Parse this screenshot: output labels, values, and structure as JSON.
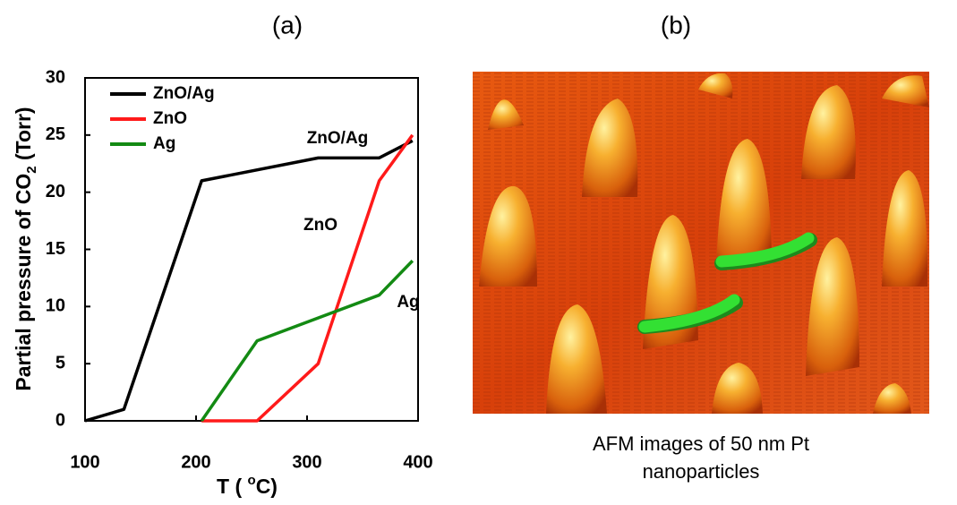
{
  "chart_data": {
    "type": "line",
    "panel_label": "(a)",
    "x_label": {
      "text": "T ( ",
      "superscript": "o",
      "suffix": "C)"
    },
    "y_label": {
      "text": "Partial pressure of CO",
      "subscript": "2",
      "suffix": " (Torr)"
    },
    "xlim": [
      100,
      400
    ],
    "xticks": [
      100,
      200,
      300,
      400
    ],
    "ylim": [
      0,
      30
    ],
    "yticks": [
      0,
      5,
      10,
      15,
      20,
      25,
      30
    ],
    "legend": "upper left",
    "series": [
      {
        "name": "ZnO/Ag",
        "color": "#000000",
        "x": [
          100,
          135,
          205,
          310,
          365,
          395
        ],
        "values": [
          0,
          1,
          21,
          23,
          23,
          24.5
        ]
      },
      {
        "name": "ZnO",
        "color": "#ff1a1a",
        "x": [
          205,
          255,
          310,
          365,
          395
        ],
        "values": [
          0,
          0,
          5,
          21,
          25
        ]
      },
      {
        "name": "Ag",
        "color": "#138a13",
        "x": [
          205,
          255,
          365,
          395
        ],
        "values": [
          0,
          7,
          11,
          14
        ]
      }
    ],
    "annotations": [
      "ZnO/Ag",
      "ZnO",
      "Ag"
    ]
  },
  "image_panel": {
    "panel_label": "(b)",
    "caption": [
      "AFM images of 50 nm Pt",
      "nanoparticles"
    ]
  }
}
